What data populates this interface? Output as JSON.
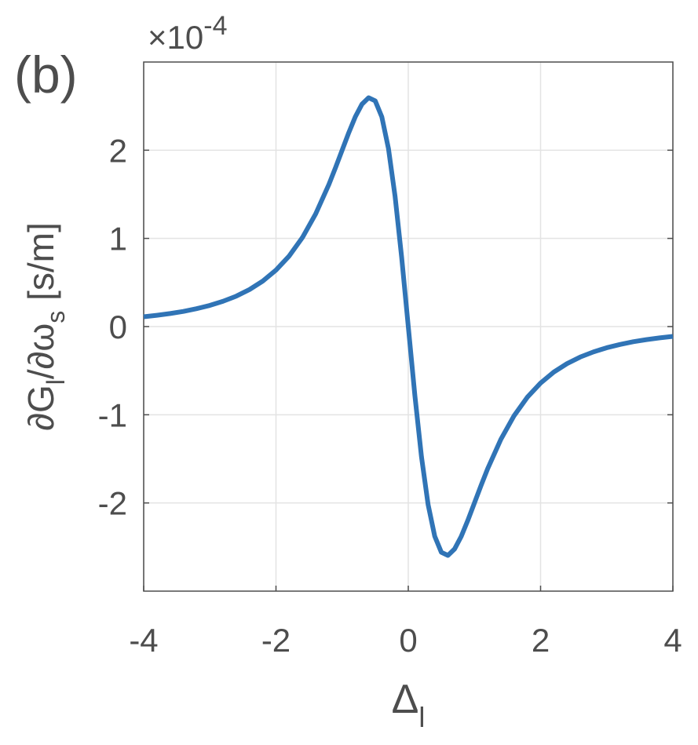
{
  "chart_data": {
    "type": "line",
    "panel_label": "(b)",
    "multiplier": {
      "base": "×10",
      "exponent": "-4"
    },
    "ylabel": {
      "main": "∂G",
      "sub1": "l",
      "mid": "/∂ω",
      "sub2": "s",
      "tail": " [s/m]"
    },
    "xlabel": {
      "main": "Δ",
      "sub": "l"
    },
    "x": [
      -4,
      -3.8,
      -3.6,
      -3.4,
      -3.2,
      -3,
      -2.8,
      -2.6,
      -2.4,
      -2.2,
      -2,
      -1.8,
      -1.6,
      -1.4,
      -1.2,
      -1.1,
      -1,
      -0.9,
      -0.8,
      -0.7,
      -0.6,
      -0.5,
      -0.4,
      -0.3,
      -0.2,
      -0.1,
      0,
      0.1,
      0.2,
      0.3,
      0.4,
      0.5,
      0.6,
      0.7,
      0.8,
      0.9,
      1,
      1.1,
      1.2,
      1.4,
      1.6,
      1.8,
      2,
      2.2,
      2.4,
      2.6,
      2.8,
      3,
      3.2,
      3.4,
      3.6,
      3.8,
      4
    ],
    "series": [
      {
        "color": "#3074b6",
        "values": [
          0.111,
          0.128,
          0.148,
          0.172,
          0.203,
          0.24,
          0.287,
          0.345,
          0.42,
          0.516,
          0.64,
          0.801,
          1.01,
          1.278,
          1.612,
          1.802,
          2.0,
          2.198,
          2.38,
          2.522,
          2.595,
          2.56,
          2.378,
          2.02,
          1.479,
          0.784,
          0,
          -0.784,
          -1.479,
          -2.02,
          -2.378,
          -2.56,
          -2.595,
          -2.522,
          -2.38,
          -2.198,
          -2.0,
          -1.802,
          -1.612,
          -1.278,
          -1.01,
          -0.801,
          -0.64,
          -0.516,
          -0.42,
          -0.345,
          -0.287,
          -0.24,
          -0.203,
          -0.172,
          -0.148,
          -0.128,
          -0.111
        ]
      }
    ],
    "xlim": [
      -4,
      4
    ],
    "xticks": [
      -4,
      -2,
      0,
      2,
      4
    ],
    "ylim": [
      -3,
      3
    ],
    "yticks": [
      -2,
      -1,
      0,
      1,
      2
    ],
    "grid": true
  }
}
